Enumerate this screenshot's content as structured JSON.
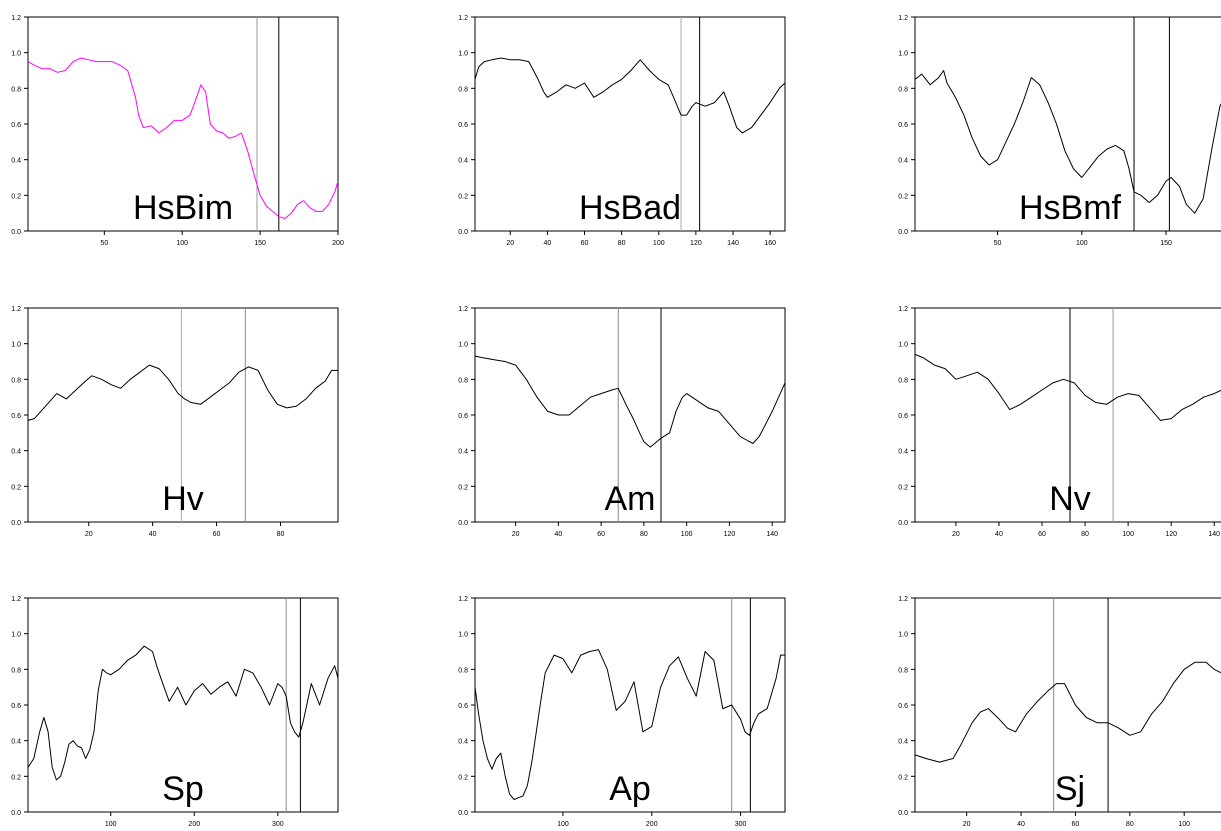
{
  "figure": {
    "grid_rows": 3,
    "grid_cols": 3
  },
  "chart_data": [
    {
      "type": "line",
      "panel_label": "HsBim",
      "xlim": [
        1,
        200
      ],
      "ylim": [
        0,
        1.2
      ],
      "xticks": [
        50,
        100,
        150,
        200
      ],
      "yticks": [
        0.0,
        0.2,
        0.4,
        0.6,
        0.8,
        1.0,
        1.2
      ],
      "line_color": "#ff00ff",
      "markers_x": [
        148,
        162
      ],
      "marker_colors": [
        "#999999",
        "#000000"
      ],
      "series": [
        {
          "x": [
            1,
            5,
            10,
            15,
            20,
            25,
            30,
            35,
            40,
            45,
            50,
            55,
            60,
            65,
            70,
            72,
            75,
            80,
            85,
            90,
            95,
            100,
            105,
            108,
            112,
            115,
            118,
            122,
            126,
            130,
            134,
            138,
            142,
            146,
            150,
            154,
            158,
            162,
            166,
            170,
            174,
            178,
            182,
            186,
            190,
            194,
            198,
            200
          ],
          "y": [
            0.95,
            0.93,
            0.91,
            0.91,
            0.89,
            0.9,
            0.95,
            0.97,
            0.96,
            0.95,
            0.95,
            0.95,
            0.93,
            0.9,
            0.75,
            0.65,
            0.58,
            0.59,
            0.55,
            0.58,
            0.62,
            0.62,
            0.65,
            0.72,
            0.82,
            0.78,
            0.6,
            0.56,
            0.55,
            0.52,
            0.53,
            0.55,
            0.45,
            0.32,
            0.2,
            0.14,
            0.11,
            0.08,
            0.07,
            0.1,
            0.15,
            0.17,
            0.13,
            0.11,
            0.11,
            0.15,
            0.22,
            0.28
          ]
        }
      ]
    },
    {
      "type": "line",
      "panel_label": "HsBad",
      "xlim": [
        1,
        168
      ],
      "ylim": [
        0,
        1.2
      ],
      "xticks": [
        20,
        40,
        60,
        80,
        100,
        120,
        140,
        160
      ],
      "yticks": [
        0.0,
        0.2,
        0.4,
        0.6,
        0.8,
        1.0,
        1.2
      ],
      "line_color": "#000000",
      "markers_x": [
        112,
        122
      ],
      "marker_colors": [
        "#aaaaaa",
        "#000000"
      ],
      "series": [
        {
          "x": [
            1,
            3,
            6,
            10,
            15,
            20,
            25,
            30,
            35,
            38,
            40,
            45,
            50,
            55,
            60,
            65,
            70,
            75,
            80,
            85,
            90,
            95,
            100,
            105,
            108,
            112,
            115,
            118,
            120,
            125,
            130,
            135,
            138,
            142,
            145,
            150,
            155,
            160,
            165,
            168
          ],
          "y": [
            0.85,
            0.92,
            0.95,
            0.96,
            0.97,
            0.96,
            0.96,
            0.95,
            0.85,
            0.78,
            0.75,
            0.78,
            0.82,
            0.8,
            0.83,
            0.75,
            0.78,
            0.82,
            0.85,
            0.9,
            0.96,
            0.9,
            0.85,
            0.82,
            0.75,
            0.65,
            0.65,
            0.7,
            0.72,
            0.7,
            0.72,
            0.78,
            0.7,
            0.58,
            0.55,
            0.58,
            0.65,
            0.72,
            0.8,
            0.83
          ]
        }
      ]
    },
    {
      "type": "line",
      "panel_label": "HsBmf",
      "xlim": [
        1,
        185
      ],
      "ylim": [
        0,
        1.2
      ],
      "xticks": [
        50,
        100,
        150
      ],
      "yticks": [
        0.0,
        0.2,
        0.4,
        0.6,
        0.8,
        1.0,
        1.2
      ],
      "line_color": "#000000",
      "markers_x": [
        131,
        152
      ],
      "marker_colors": [
        "#000000",
        "#000000"
      ],
      "series": [
        {
          "x": [
            1,
            5,
            10,
            15,
            18,
            20,
            25,
            30,
            35,
            40,
            45,
            50,
            55,
            60,
            65,
            70,
            75,
            80,
            85,
            90,
            95,
            100,
            105,
            110,
            115,
            120,
            125,
            128,
            131,
            135,
            140,
            145,
            150,
            153,
            158,
            162,
            167,
            172,
            177,
            182,
            185
          ],
          "y": [
            0.85,
            0.88,
            0.82,
            0.86,
            0.9,
            0.83,
            0.75,
            0.65,
            0.52,
            0.42,
            0.37,
            0.4,
            0.5,
            0.6,
            0.72,
            0.86,
            0.82,
            0.72,
            0.6,
            0.45,
            0.35,
            0.3,
            0.36,
            0.42,
            0.46,
            0.48,
            0.45,
            0.35,
            0.22,
            0.2,
            0.16,
            0.2,
            0.28,
            0.3,
            0.25,
            0.15,
            0.1,
            0.18,
            0.45,
            0.7,
            0.75
          ]
        }
      ]
    },
    {
      "type": "line",
      "panel_label": "Hv",
      "xlim": [
        1,
        98
      ],
      "ylim": [
        0,
        1.2
      ],
      "xticks": [
        20,
        40,
        60,
        80
      ],
      "yticks": [
        0.0,
        0.2,
        0.4,
        0.6,
        0.8,
        1.0,
        1.2
      ],
      "line_color": "#000000",
      "markers_x": [
        49,
        69
      ],
      "marker_colors": [
        "#aaaaaa",
        "#888888"
      ],
      "series": [
        {
          "x": [
            1,
            3,
            5,
            8,
            10,
            13,
            16,
            19,
            21,
            24,
            27,
            30,
            33,
            36,
            39,
            42,
            45,
            48,
            50,
            52,
            55,
            58,
            61,
            64,
            67,
            70,
            73,
            76,
            79,
            82,
            85,
            88,
            91,
            94,
            96,
            98
          ],
          "y": [
            0.57,
            0.58,
            0.62,
            0.68,
            0.72,
            0.69,
            0.74,
            0.79,
            0.82,
            0.8,
            0.77,
            0.75,
            0.8,
            0.84,
            0.88,
            0.86,
            0.8,
            0.72,
            0.69,
            0.67,
            0.66,
            0.7,
            0.74,
            0.78,
            0.84,
            0.87,
            0.85,
            0.74,
            0.66,
            0.64,
            0.65,
            0.69,
            0.75,
            0.79,
            0.85,
            0.85
          ]
        }
      ]
    },
    {
      "type": "line",
      "panel_label": "Am",
      "xlim": [
        1,
        146
      ],
      "ylim": [
        0,
        1.2
      ],
      "xticks": [
        20,
        40,
        60,
        80,
        100,
        120,
        140
      ],
      "yticks": [
        0.0,
        0.2,
        0.4,
        0.6,
        0.8,
        1.0,
        1.2
      ],
      "line_color": "#000000",
      "markers_x": [
        68,
        88
      ],
      "marker_colors": [
        "#888888",
        "#000000"
      ],
      "series": [
        {
          "x": [
            1,
            5,
            10,
            15,
            20,
            25,
            30,
            35,
            40,
            45,
            50,
            55,
            60,
            65,
            68,
            72,
            75,
            78,
            80,
            83,
            86,
            88,
            92,
            95,
            98,
            100,
            105,
            110,
            115,
            120,
            125,
            128,
            131,
            134,
            137,
            140,
            143,
            146
          ],
          "y": [
            0.93,
            0.92,
            0.91,
            0.9,
            0.88,
            0.8,
            0.7,
            0.62,
            0.6,
            0.6,
            0.65,
            0.7,
            0.72,
            0.74,
            0.75,
            0.65,
            0.58,
            0.5,
            0.45,
            0.42,
            0.45,
            0.47,
            0.5,
            0.62,
            0.7,
            0.72,
            0.68,
            0.64,
            0.62,
            0.55,
            0.48,
            0.46,
            0.44,
            0.48,
            0.55,
            0.62,
            0.7,
            0.78
          ]
        }
      ]
    },
    {
      "type": "line",
      "panel_label": "Nv",
      "xlim": [
        1,
        145
      ],
      "ylim": [
        0,
        1.2
      ],
      "xticks": [
        20,
        40,
        60,
        80,
        100,
        120,
        140
      ],
      "yticks": [
        0.0,
        0.2,
        0.4,
        0.6,
        0.8,
        1.0,
        1.2
      ],
      "line_color": "#000000",
      "markers_x": [
        73,
        93
      ],
      "marker_colors": [
        "#000000",
        "#999999"
      ],
      "series": [
        {
          "x": [
            1,
            5,
            10,
            15,
            20,
            25,
            30,
            35,
            40,
            45,
            50,
            55,
            60,
            65,
            70,
            75,
            80,
            85,
            90,
            95,
            100,
            105,
            110,
            115,
            120,
            125,
            130,
            135,
            140,
            145
          ],
          "y": [
            0.94,
            0.92,
            0.88,
            0.86,
            0.8,
            0.82,
            0.84,
            0.8,
            0.72,
            0.63,
            0.66,
            0.7,
            0.74,
            0.78,
            0.8,
            0.78,
            0.71,
            0.67,
            0.66,
            0.7,
            0.72,
            0.71,
            0.64,
            0.57,
            0.58,
            0.63,
            0.66,
            0.7,
            0.72,
            0.75
          ]
        }
      ]
    },
    {
      "type": "line",
      "panel_label": "Sp",
      "xlim": [
        1,
        372
      ],
      "ylim": [
        0,
        1.2
      ],
      "xticks": [
        100,
        200,
        300
      ],
      "yticks": [
        0.0,
        0.2,
        0.4,
        0.6,
        0.8,
        1.0,
        1.2
      ],
      "line_color": "#000000",
      "markers_x": [
        310,
        327
      ],
      "marker_colors": [
        "#888888",
        "#000000"
      ],
      "series": [
        {
          "x": [
            1,
            8,
            15,
            20,
            25,
            30,
            35,
            40,
            45,
            50,
            55,
            60,
            65,
            70,
            75,
            80,
            85,
            90,
            95,
            100,
            110,
            120,
            130,
            140,
            150,
            155,
            160,
            170,
            180,
            190,
            200,
            210,
            220,
            230,
            240,
            250,
            260,
            270,
            280,
            290,
            300,
            305,
            310,
            315,
            320,
            325,
            330,
            340,
            350,
            360,
            368,
            372
          ],
          "y": [
            0.25,
            0.3,
            0.45,
            0.53,
            0.45,
            0.25,
            0.18,
            0.2,
            0.28,
            0.38,
            0.4,
            0.37,
            0.36,
            0.3,
            0.35,
            0.45,
            0.68,
            0.8,
            0.78,
            0.77,
            0.8,
            0.85,
            0.88,
            0.93,
            0.9,
            0.82,
            0.75,
            0.62,
            0.7,
            0.6,
            0.68,
            0.72,
            0.66,
            0.7,
            0.73,
            0.65,
            0.8,
            0.78,
            0.7,
            0.6,
            0.72,
            0.7,
            0.65,
            0.5,
            0.45,
            0.42,
            0.5,
            0.72,
            0.6,
            0.75,
            0.82,
            0.75
          ]
        }
      ]
    },
    {
      "type": "line",
      "panel_label": "Ap",
      "xlim": [
        1,
        350
      ],
      "ylim": [
        0,
        1.2
      ],
      "xticks": [
        100,
        200,
        300
      ],
      "yticks": [
        0.0,
        0.2,
        0.4,
        0.6,
        0.8,
        1.0,
        1.2
      ],
      "line_color": "#000000",
      "markers_x": [
        290,
        311
      ],
      "marker_colors": [
        "#888888",
        "#000000"
      ],
      "series": [
        {
          "x": [
            1,
            5,
            10,
            15,
            20,
            25,
            30,
            35,
            40,
            45,
            50,
            55,
            60,
            65,
            70,
            75,
            80,
            90,
            100,
            110,
            120,
            130,
            140,
            150,
            160,
            170,
            180,
            190,
            200,
            210,
            220,
            230,
            240,
            250,
            260,
            270,
            280,
            290,
            300,
            305,
            310,
            315,
            320,
            330,
            340,
            345,
            350
          ],
          "y": [
            0.7,
            0.55,
            0.4,
            0.3,
            0.24,
            0.3,
            0.33,
            0.2,
            0.1,
            0.07,
            0.08,
            0.09,
            0.15,
            0.28,
            0.45,
            0.62,
            0.78,
            0.88,
            0.86,
            0.78,
            0.88,
            0.9,
            0.91,
            0.8,
            0.57,
            0.62,
            0.73,
            0.45,
            0.48,
            0.7,
            0.82,
            0.87,
            0.75,
            0.65,
            0.9,
            0.85,
            0.58,
            0.6,
            0.52,
            0.45,
            0.43,
            0.5,
            0.55,
            0.58,
            0.75,
            0.88,
            0.88
          ]
        }
      ]
    },
    {
      "type": "line",
      "panel_label": "Sj",
      "xlim": [
        1,
        115
      ],
      "ylim": [
        0,
        1.2
      ],
      "xticks": [
        20,
        40,
        60,
        80,
        100
      ],
      "yticks": [
        0.0,
        0.2,
        0.4,
        0.6,
        0.8,
        1.0,
        1.2
      ],
      "line_color": "#000000",
      "markers_x": [
        52,
        72
      ],
      "marker_colors": [
        "#888888",
        "#000000"
      ],
      "series": [
        {
          "x": [
            1,
            5,
            10,
            15,
            18,
            22,
            25,
            28,
            32,
            35,
            38,
            42,
            46,
            50,
            53,
            56,
            60,
            64,
            68,
            72,
            76,
            80,
            84,
            88,
            92,
            96,
            100,
            104,
            108,
            111,
            115
          ],
          "y": [
            0.32,
            0.3,
            0.28,
            0.3,
            0.38,
            0.5,
            0.56,
            0.58,
            0.52,
            0.47,
            0.45,
            0.55,
            0.62,
            0.68,
            0.72,
            0.72,
            0.6,
            0.53,
            0.5,
            0.5,
            0.47,
            0.43,
            0.45,
            0.55,
            0.62,
            0.72,
            0.8,
            0.84,
            0.84,
            0.8,
            0.77
          ]
        }
      ]
    }
  ]
}
